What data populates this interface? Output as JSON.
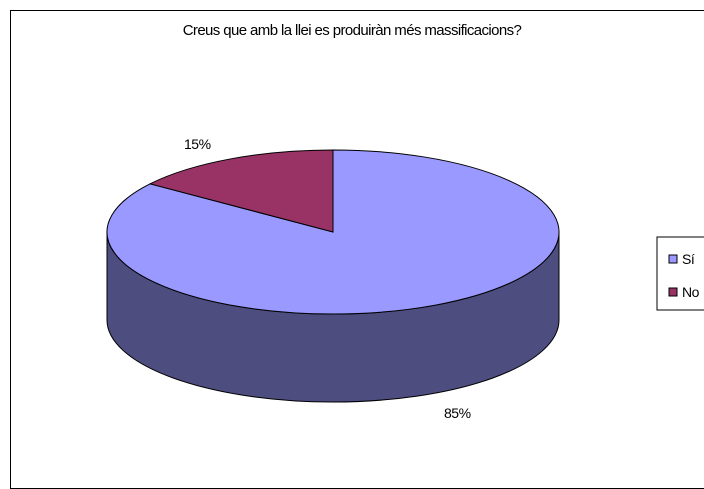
{
  "chart_data": {
    "type": "pie",
    "title": "Creus que amb la llei es produiràn més massificacions?",
    "categories": [
      "Sí",
      "No"
    ],
    "values": [
      85,
      15
    ],
    "data_labels": [
      "85%",
      "15%"
    ],
    "colors": {
      "Sí": "#9999ff",
      "No": "#993366",
      "Sí_side": "#4d4d80"
    },
    "three_d": true,
    "legend_position": "right"
  }
}
